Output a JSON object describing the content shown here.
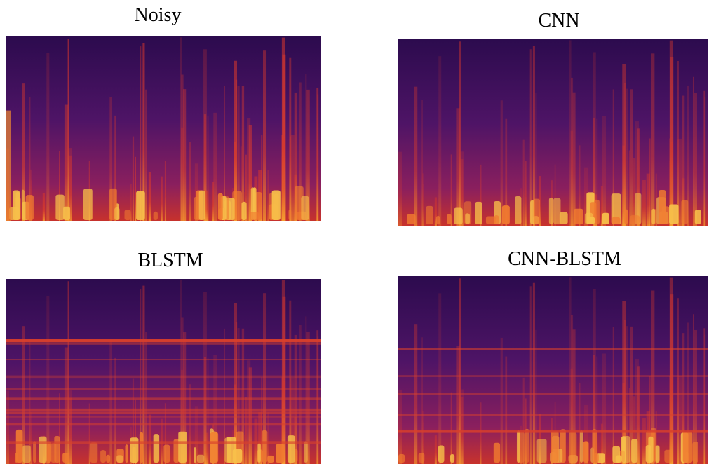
{
  "panels": [
    {
      "title": "Noisy"
    },
    {
      "title": "CNN"
    },
    {
      "title": "BLSTM"
    },
    {
      "title": "CNN-BLSTM"
    }
  ]
}
